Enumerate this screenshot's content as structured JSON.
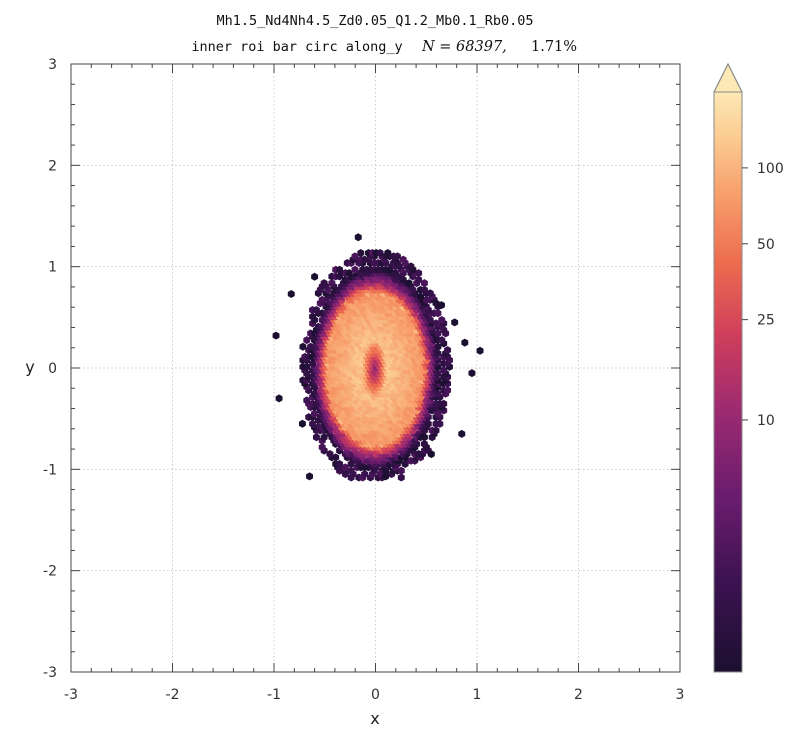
{
  "chart_data": {
    "type": "heatmap",
    "subtype": "hexbin",
    "title": "Mh1.5_Nd4Nh4.5_Zd0.05_Q1.2_Mb0.1_Rb0.05",
    "subtitle_text": "inner roi bar circ along_y",
    "subtitle_n": "N = 68397,",
    "subtitle_pct": "1.71%",
    "xlabel": "x",
    "ylabel": "y",
    "xlim": [
      -3,
      3
    ],
    "ylim": [
      -3,
      3
    ],
    "xticks": [
      -3,
      -2,
      -1,
      0,
      1,
      2,
      3
    ],
    "yticks": [
      -3,
      -2,
      -1,
      0,
      1,
      2,
      3
    ],
    "x_tick_labels": [
      "-3",
      "-2",
      "-1",
      "0",
      "1",
      "2",
      "3"
    ],
    "y_tick_labels": [
      "-3",
      "-2",
      "-1",
      "0",
      "1",
      "2",
      "3"
    ],
    "grid": true,
    "colormap": "magma",
    "colorbar": {
      "scale": "log",
      "min": 1,
      "max": 200,
      "extend": "max",
      "ticks": [
        10,
        25,
        50,
        100
      ],
      "tick_labels": [
        "10",
        "25",
        "50",
        "100"
      ]
    },
    "distribution": {
      "center": [
        0.0,
        0.0
      ],
      "x_extent": [
        -1.0,
        1.05
      ],
      "y_extent": [
        -1.08,
        1.3
      ],
      "core_semi_axes": [
        0.6,
        0.95
      ],
      "inner_dip_semi_axes": [
        0.12,
        0.3
      ]
    },
    "outlier_points": [
      [
        -0.17,
        1.29
      ],
      [
        -0.83,
        0.73
      ],
      [
        -0.98,
        0.32
      ],
      [
        1.03,
        0.17
      ],
      [
        0.88,
        0.25
      ],
      [
        -0.95,
        -0.3
      ],
      [
        0.85,
        -0.65
      ],
      [
        -0.65,
        -1.07
      ],
      [
        0.1,
        -1.07
      ],
      [
        0.65,
        0.62
      ],
      [
        -0.72,
        -0.55
      ],
      [
        0.78,
        0.45
      ],
      [
        -0.6,
        0.9
      ],
      [
        0.55,
        -0.85
      ],
      [
        0.95,
        -0.05
      ]
    ]
  }
}
